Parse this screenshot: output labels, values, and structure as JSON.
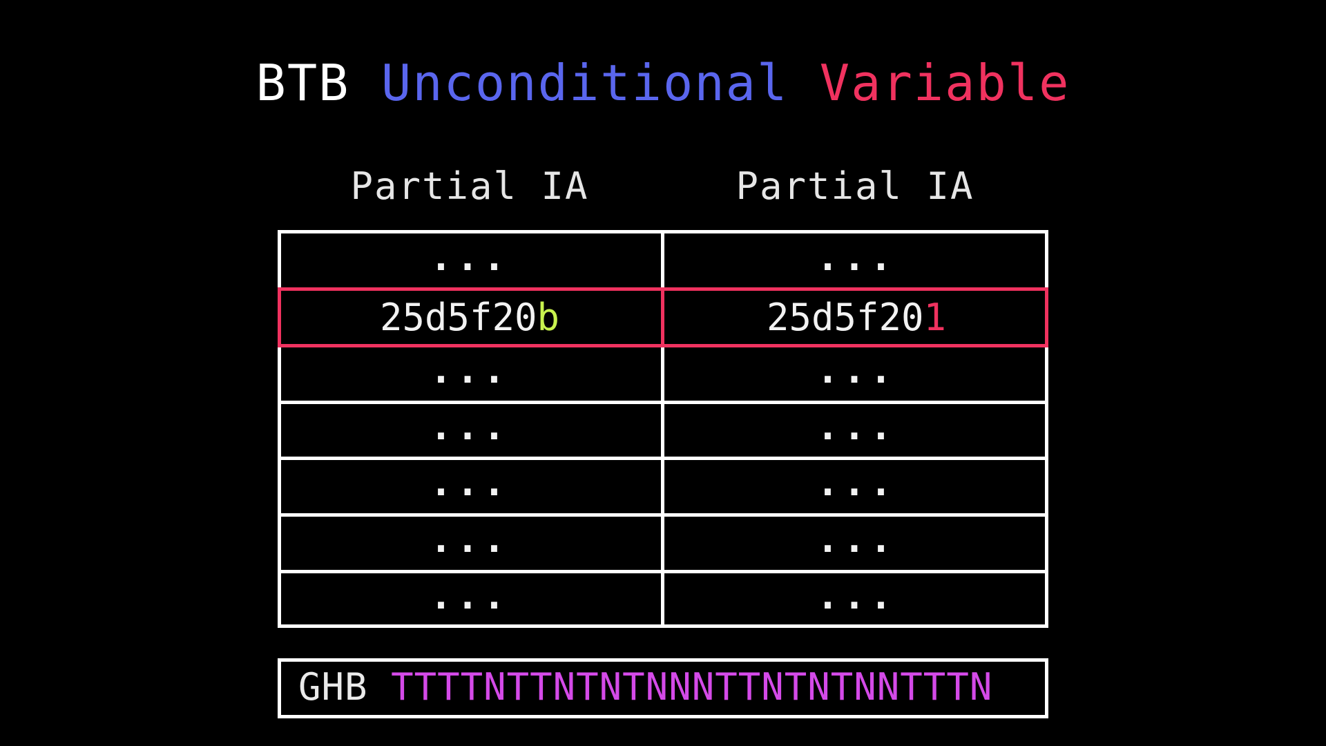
{
  "title": {
    "part1": "BTB ",
    "part2": "Unconditional",
    "part3": " ",
    "part4": "Variable",
    "colors": {
      "part1": "#ffffff",
      "part2": "#5a66ee",
      "part4": "#f0325f"
    }
  },
  "headers": {
    "left": "Partial IA",
    "right": "Partial IA"
  },
  "rows": [
    {
      "left": "...",
      "right": "..."
    },
    {
      "left_prefix": "25d5f20",
      "left_suffix": "b",
      "right_prefix": "25d5f20",
      "right_suffix": "1"
    },
    {
      "left": "...",
      "right": "..."
    },
    {
      "left": "...",
      "right": "..."
    },
    {
      "left": "...",
      "right": "..."
    },
    {
      "left": "...",
      "right": "..."
    },
    {
      "left": "...",
      "right": "..."
    }
  ],
  "colors": {
    "left_suffix": "#c8f24e",
    "right_suffix": "#f0325f",
    "highlight_border": "#f0325f",
    "ghb_value": "#d44ae8"
  },
  "ghb": {
    "label": "GHB",
    "value": "TTTTNTTNTNTNNNTTNTNTNNTTTN"
  }
}
